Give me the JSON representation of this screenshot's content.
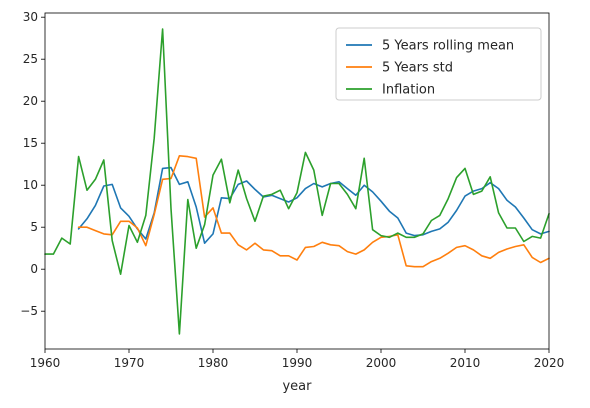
{
  "chart_data": {
    "type": "line",
    "xlabel": "year",
    "ylabel": "",
    "xlim": [
      1960,
      2020
    ],
    "ylim": [
      -9.5,
      30.5
    ],
    "xticks": [
      1960,
      1970,
      1980,
      1990,
      2000,
      2010,
      2020
    ],
    "yticks": [
      -5,
      0,
      5,
      10,
      15,
      20,
      25,
      30
    ],
    "grid": false,
    "legend_position": "top-right",
    "series": [
      {
        "name": "5 Years rolling mean",
        "color": "#1f77b4",
        "x": [
          1964,
          1965,
          1966,
          1967,
          1968,
          1969,
          1970,
          1971,
          1972,
          1973,
          1974,
          1975,
          1976,
          1977,
          1978,
          1979,
          1980,
          1981,
          1982,
          1983,
          1984,
          1985,
          1986,
          1987,
          1988,
          1989,
          1990,
          1991,
          1992,
          1993,
          1994,
          1995,
          1996,
          1997,
          1998,
          1999,
          2000,
          2001,
          2002,
          2003,
          2004,
          2005,
          2006,
          2007,
          2008,
          2009,
          2010,
          2011,
          2012,
          2013,
          2014,
          2015,
          2016,
          2017,
          2018,
          2019,
          2020
        ],
        "y": [
          4.8,
          6.0,
          7.6,
          9.9,
          10.1,
          7.3,
          6.3,
          4.8,
          3.6,
          6.7,
          12.0,
          12.1,
          10.1,
          10.4,
          7.4,
          3.1,
          4.2,
          8.5,
          8.4,
          10.1,
          10.5,
          9.5,
          8.6,
          8.8,
          8.4,
          8.0,
          8.5,
          9.6,
          10.2,
          9.8,
          10.2,
          10.4,
          9.6,
          8.8,
          10.0,
          9.2,
          8.1,
          6.9,
          6.1,
          4.3,
          4.0,
          4.1,
          4.5,
          4.8,
          5.6,
          7.0,
          8.7,
          9.3,
          9.6,
          10.3,
          9.6,
          8.2,
          7.4,
          6.1,
          4.7,
          4.2,
          4.5
        ]
      },
      {
        "name": "5 Years std",
        "color": "#ff7f0e",
        "x": [
          1964,
          1965,
          1966,
          1967,
          1968,
          1969,
          1970,
          1971,
          1972,
          1973,
          1974,
          1975,
          1976,
          1977,
          1978,
          1979,
          1980,
          1981,
          1982,
          1983,
          1984,
          1985,
          1986,
          1987,
          1988,
          1989,
          1990,
          1991,
          1992,
          1993,
          1994,
          1995,
          1996,
          1997,
          1998,
          1999,
          2000,
          2001,
          2002,
          2003,
          2004,
          2005,
          2006,
          2007,
          2008,
          2009,
          2010,
          2011,
          2012,
          2013,
          2014,
          2015,
          2016,
          2017,
          2018,
          2019,
          2020
        ],
        "y": [
          5.0,
          5.0,
          4.6,
          4.2,
          4.1,
          5.7,
          5.7,
          4.9,
          2.8,
          6.5,
          10.7,
          10.8,
          13.5,
          13.4,
          13.2,
          6.2,
          7.3,
          4.3,
          4.3,
          2.9,
          2.3,
          3.1,
          2.3,
          2.2,
          1.6,
          1.6,
          1.1,
          2.6,
          2.7,
          3.2,
          2.9,
          2.8,
          2.1,
          1.8,
          2.3,
          3.2,
          3.8,
          3.9,
          4.1,
          0.4,
          0.3,
          0.3,
          0.9,
          1.3,
          1.9,
          2.6,
          2.8,
          2.3,
          1.6,
          1.3,
          2.0,
          2.4,
          2.7,
          2.9,
          1.4,
          0.8,
          1.3
        ]
      },
      {
        "name": "Inflation",
        "color": "#2ca02c",
        "x": [
          1960,
          1961,
          1962,
          1963,
          1964,
          1965,
          1966,
          1967,
          1968,
          1969,
          1970,
          1971,
          1972,
          1973,
          1974,
          1975,
          1976,
          1977,
          1978,
          1979,
          1980,
          1981,
          1982,
          1983,
          1984,
          1985,
          1986,
          1987,
          1988,
          1989,
          1990,
          1991,
          1992,
          1993,
          1994,
          1995,
          1996,
          1997,
          1998,
          1999,
          2000,
          2001,
          2002,
          2003,
          2004,
          2005,
          2006,
          2007,
          2008,
          2009,
          2010,
          2011,
          2012,
          2013,
          2014,
          2015,
          2016,
          2017,
          2018,
          2019,
          2020
        ],
        "y": [
          1.8,
          1.8,
          3.7,
          3.0,
          13.4,
          9.4,
          10.7,
          13.0,
          3.4,
          -0.6,
          5.2,
          3.2,
          6.4,
          15.6,
          28.6,
          7.2,
          -7.7,
          8.3,
          2.5,
          5.3,
          11.2,
          13.1,
          7.9,
          11.8,
          8.4,
          5.7,
          8.7,
          8.9,
          9.4,
          7.2,
          9.1,
          13.9,
          11.8,
          6.4,
          10.2,
          10.2,
          8.9,
          7.2,
          13.2,
          4.7,
          4.0,
          3.8,
          4.3,
          3.8,
          3.8,
          4.2,
          5.8,
          6.4,
          8.4,
          10.9,
          12.0,
          8.9,
          9.3,
          11.0,
          6.7,
          4.9,
          4.9,
          3.3,
          3.9,
          3.7,
          6.6
        ]
      }
    ]
  }
}
